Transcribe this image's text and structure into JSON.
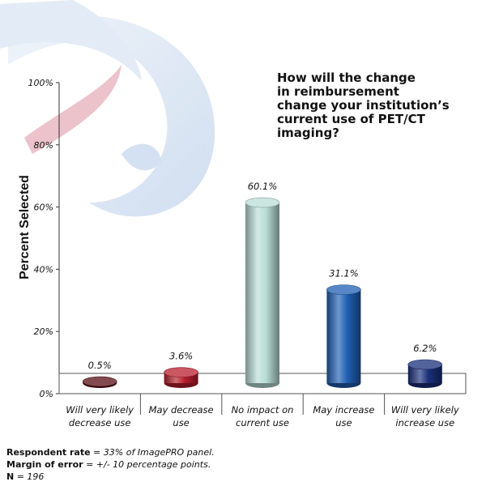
{
  "chart_data": {
    "type": "bar",
    "title": "How will the change\nin reimbursement\nchange your institution’s\ncurrent use of PET/CT\nimaging?",
    "ylabel": "Percent Selected",
    "ylim": [
      0,
      100
    ],
    "yticks": [
      "0%",
      "20%",
      "40%",
      "60%",
      "80%",
      "100%"
    ],
    "categories": [
      "Will very likely\ndecrease use",
      "May decrease\nuse",
      "No impact on\ncurrent use",
      "May increase\nuse",
      "Will very likely\nincrease use"
    ],
    "values": [
      0.5,
      3.6,
      60.1,
      31.1,
      6.2
    ],
    "value_labels": [
      "0.5%",
      "3.6%",
      "60.1%",
      "31.1%",
      "6.2%"
    ],
    "colors": [
      "#5a0f14",
      "#b81f2e",
      "#b9ddd6",
      "#1f5fb4",
      "#1a2f7a"
    ],
    "grid": false,
    "legend": "none"
  },
  "footnotes": [
    {
      "label": "Respondent rate",
      "value": " = 33% of ImagePRO panel."
    },
    {
      "label": "Margin of error",
      "value": " = +/- 10 percentage points."
    },
    {
      "label": "N",
      "value": " = 196"
    }
  ]
}
